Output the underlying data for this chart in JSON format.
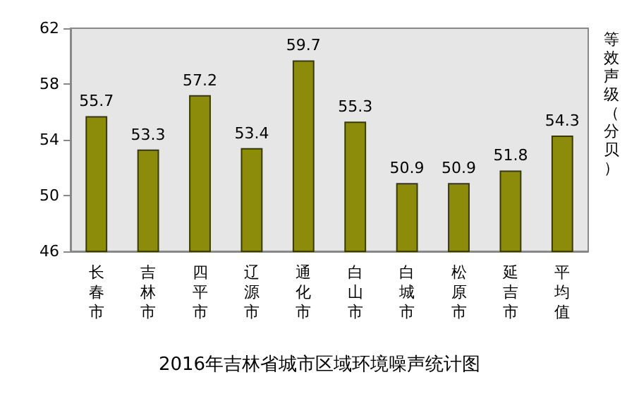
{
  "chart_data": {
    "type": "bar",
    "title": "2016年吉林省城市区域环境噪声统计图",
    "ylabel": "等效声级（分贝）",
    "categories": [
      "长春市",
      "吉林市",
      "四平市",
      "辽源市",
      "通化市",
      "白山市",
      "白城市",
      "松原市",
      "延吉市",
      "平均值"
    ],
    "values": [
      55.7,
      53.3,
      57.2,
      53.4,
      59.7,
      55.3,
      50.9,
      50.9,
      51.8,
      54.3
    ],
    "color": "#8c8c0a",
    "ylim": [
      46,
      62
    ],
    "yticks": [
      46,
      50,
      54,
      58,
      62
    ],
    "data_labels": true
  }
}
